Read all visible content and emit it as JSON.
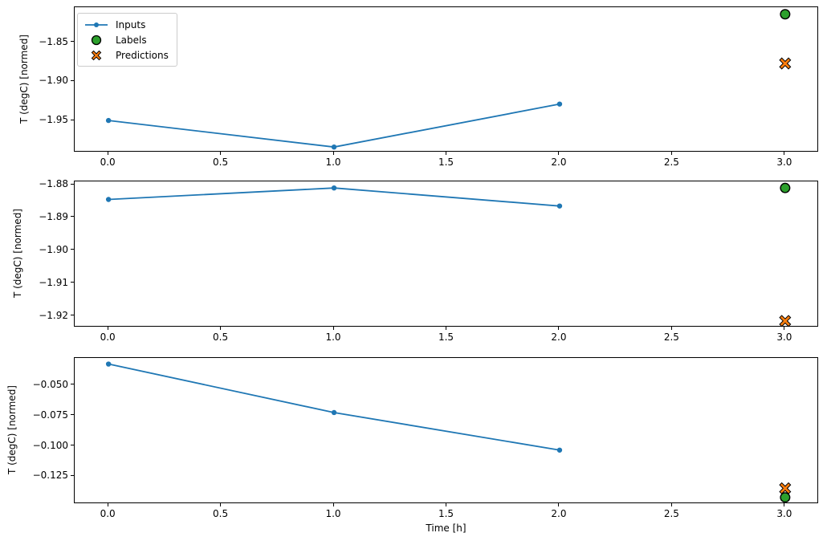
{
  "figure": {
    "background": "#ffffff",
    "type": "matplotlib-multi-subplot"
  },
  "colors": {
    "inputs": "#1f77b4",
    "labels": "#2ca02c",
    "predictions": "#ff7f0e",
    "marker_edge": "#000000",
    "axis": "#000000",
    "legend_border": "#cccccc"
  },
  "chart_data": [
    {
      "type": "line",
      "title": "",
      "xlabel": "",
      "ylabel": "T (degC) [normed]",
      "xlim": [
        -0.15,
        3.15
      ],
      "ylim": [
        -1.991,
        -1.805
      ],
      "grid": false,
      "xticks": [
        0.0,
        0.5,
        1.0,
        1.5,
        2.0,
        2.5,
        3.0
      ],
      "xtick_labels": [
        "0.0",
        "0.5",
        "1.0",
        "1.5",
        "2.0",
        "2.5",
        "3.0"
      ],
      "yticks": [
        -1.85,
        -1.9,
        -1.95
      ],
      "ytick_labels": [
        "−1.85",
        "−1.90",
        "−1.95"
      ],
      "legend": {
        "visible": true,
        "position": "upper left",
        "entries": [
          "Inputs",
          "Labels",
          "Predictions"
        ]
      },
      "series": [
        {
          "name": "Inputs",
          "kind": "line",
          "color": "#1f77b4",
          "x": [
            0,
            1,
            2
          ],
          "y": [
            -1.95,
            -1.984,
            -1.929
          ]
        },
        {
          "name": "Labels",
          "kind": "scatter-circle",
          "color": "#2ca02c",
          "edge": "#000000",
          "x": [
            3
          ],
          "y": [
            -1.814
          ]
        },
        {
          "name": "Predictions",
          "kind": "scatter-x",
          "color": "#ff7f0e",
          "edge": "#000000",
          "x": [
            3
          ],
          "y": [
            -1.877
          ]
        }
      ]
    },
    {
      "type": "line",
      "title": "",
      "xlabel": "",
      "ylabel": "T (degC) [normed]",
      "xlim": [
        -0.15,
        3.15
      ],
      "ylim": [
        -1.9235,
        -1.879
      ],
      "grid": false,
      "xticks": [
        0.0,
        0.5,
        1.0,
        1.5,
        2.0,
        2.5,
        3.0
      ],
      "xtick_labels": [
        "0.0",
        "0.5",
        "1.0",
        "1.5",
        "2.0",
        "2.5",
        "3.0"
      ],
      "yticks": [
        -1.88,
        -1.89,
        -1.9,
        -1.91,
        -1.92
      ],
      "ytick_labels": [
        "−1.88",
        "−1.89",
        "−1.90",
        "−1.91",
        "−1.92"
      ],
      "legend": {
        "visible": false,
        "position": "upper left",
        "entries": []
      },
      "series": [
        {
          "name": "Inputs",
          "kind": "line",
          "color": "#1f77b4",
          "x": [
            0,
            1,
            2
          ],
          "y": [
            -1.8845,
            -1.881,
            -1.8865
          ]
        },
        {
          "name": "Labels",
          "kind": "scatter-circle",
          "color": "#2ca02c",
          "edge": "#000000",
          "x": [
            3
          ],
          "y": [
            -1.881
          ]
        },
        {
          "name": "Predictions",
          "kind": "scatter-x",
          "color": "#ff7f0e",
          "edge": "#000000",
          "x": [
            3
          ],
          "y": [
            -1.9215
          ]
        }
      ]
    },
    {
      "type": "line",
      "title": "",
      "xlabel": "Time [h]",
      "ylabel": "T (degC) [normed]",
      "xlim": [
        -0.15,
        3.15
      ],
      "ylim": [
        -0.148,
        -0.0275
      ],
      "grid": false,
      "xticks": [
        0.0,
        0.5,
        1.0,
        1.5,
        2.0,
        2.5,
        3.0
      ],
      "xtick_labels": [
        "0.0",
        "0.5",
        "1.0",
        "1.5",
        "2.0",
        "2.5",
        "3.0"
      ],
      "yticks": [
        -0.05,
        -0.075,
        -0.1,
        -0.125
      ],
      "ytick_labels": [
        "−0.050",
        "−0.075",
        "−0.100",
        "−0.125"
      ],
      "legend": {
        "visible": false,
        "position": "upper left",
        "entries": []
      },
      "series": [
        {
          "name": "Inputs",
          "kind": "line",
          "color": "#1f77b4",
          "x": [
            0,
            1,
            2
          ],
          "y": [
            -0.0325,
            -0.0725,
            -0.1035
          ]
        },
        {
          "name": "Labels",
          "kind": "scatter-circle",
          "color": "#2ca02c",
          "edge": "#000000",
          "x": [
            3
          ],
          "y": [
            -0.1425
          ]
        },
        {
          "name": "Predictions",
          "kind": "scatter-x",
          "color": "#ff7f0e",
          "edge": "#000000",
          "x": [
            3
          ],
          "y": [
            -0.135
          ]
        }
      ]
    }
  ]
}
